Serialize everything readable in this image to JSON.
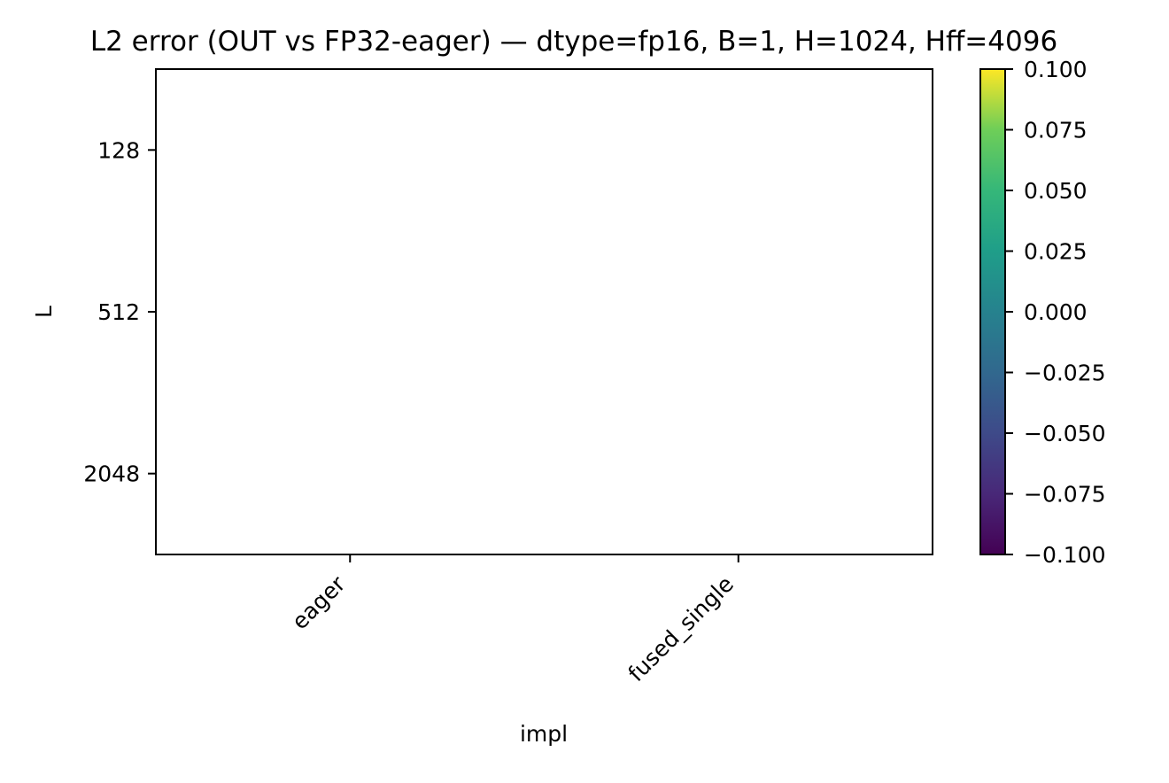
{
  "chart_data": {
    "type": "heatmap",
    "title": "L2 error (OUT vs FP32-eager) — dtype=fp16, B=1, H=1024, Hff=4096",
    "xlabel": "impl",
    "ylabel": "L",
    "x_categories": [
      "eager",
      "fused_single"
    ],
    "y_categories": [
      "128",
      "512",
      "2048"
    ],
    "values": [
      [
        null,
        null
      ],
      [
        null,
        null
      ],
      [
        null,
        null
      ]
    ],
    "colormap": "viridis",
    "colorbar": {
      "range": [
        -0.1,
        0.1
      ],
      "ticks": [
        "−0.100",
        "−0.075",
        "−0.050",
        "−0.025",
        "0.000",
        "0.025",
        "0.050",
        "0.075",
        "0.100"
      ]
    },
    "grid": false
  }
}
